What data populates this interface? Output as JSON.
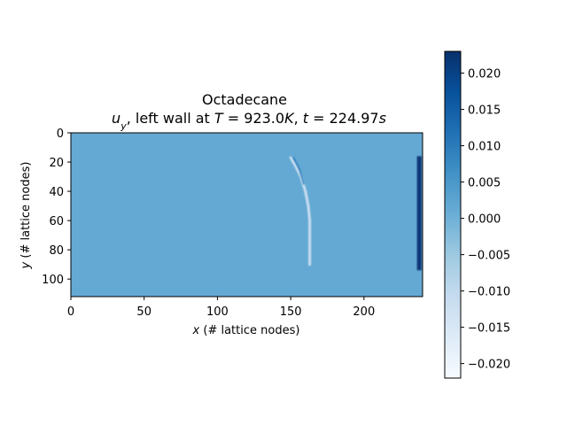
{
  "chart_data": {
    "type": "heatmap",
    "title": "Octadecane",
    "subtitle": {
      "var": "u",
      "var_sub": "y",
      "mid": ", left wall at ",
      "T_sym": "T",
      "T_val": " = 923.0",
      "T_unit": "K",
      "sep": ", ",
      "t_sym": "t",
      "t_val": " = 224.97",
      "t_unit": "s"
    },
    "xlabel": {
      "sym": "x",
      "rest": " (# lattice nodes)"
    },
    "ylabel": {
      "sym": "y",
      "rest": " (# lattice nodes)"
    },
    "xlim": [
      0,
      240
    ],
    "ylim": [
      112,
      0
    ],
    "x_ticks": [
      0,
      50,
      100,
      150,
      200
    ],
    "y_ticks": [
      0,
      20,
      40,
      60,
      80,
      100
    ],
    "colormap": "Blues",
    "background_value": 0.0015,
    "colorbar": {
      "vmin": -0.022,
      "vmax": 0.023,
      "ticks": [
        -0.02,
        -0.015,
        -0.01,
        -0.005,
        0.0,
        0.005,
        0.01,
        0.015,
        0.02
      ],
      "tick_labels": [
        "−0.020",
        "−0.015",
        "−0.010",
        "−0.005",
        "0.000",
        "0.005",
        "0.010",
        "0.015",
        "0.020"
      ]
    },
    "features": [
      {
        "name": "melt-front-band",
        "x_points": [
          [
            17,
            150
          ],
          [
            22,
            153
          ],
          [
            30,
            157
          ],
          [
            40,
            160
          ],
          [
            50,
            162
          ],
          [
            60,
            163
          ],
          [
            75,
            163
          ],
          [
            90,
            163
          ]
        ],
        "value": -0.012
      },
      {
        "name": "melt-front-dark-edge",
        "x_points": [
          [
            17,
            152
          ],
          [
            25,
            156
          ],
          [
            35,
            159
          ]
        ],
        "value": 0.01
      },
      {
        "name": "right-wall-band",
        "x": 238,
        "y_range": [
          16,
          94
        ],
        "value": 0.022
      }
    ]
  }
}
